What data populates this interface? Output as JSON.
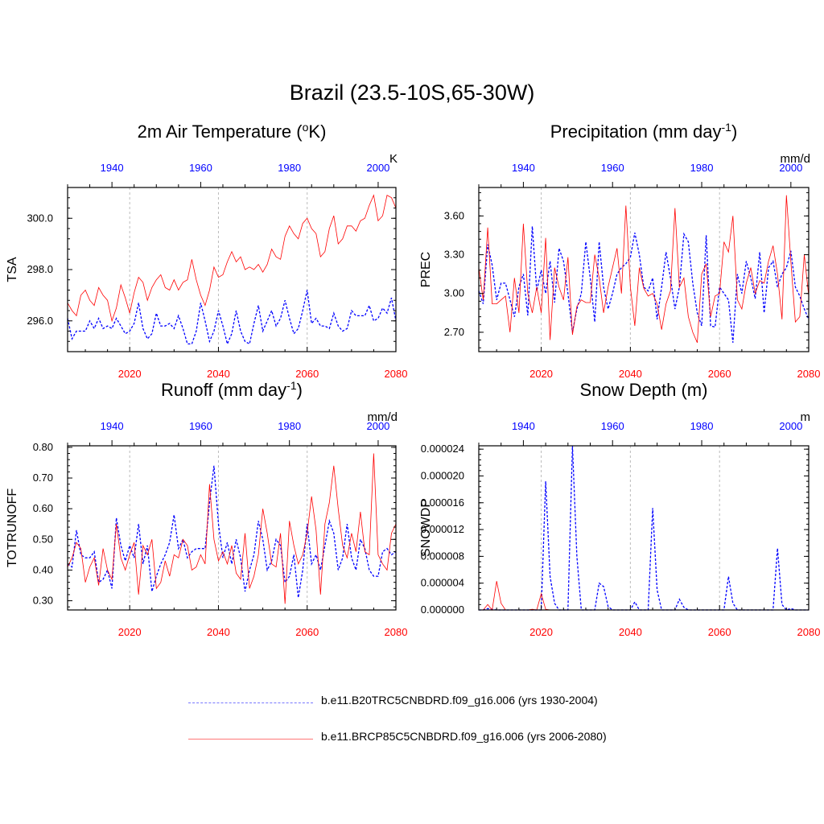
{
  "title": "Brazil (23.5-10S,65-30W)",
  "colors": {
    "historical": "#0000ff",
    "future": "#ff0000",
    "grid": "#bbbbbb",
    "frame": "#000000"
  },
  "legend": [
    {
      "label": "b.e11.B20TRC5CNBDRD.f09_g16.006 (yrs 1930-2004)",
      "style": "dashed",
      "color": "#0000ff"
    },
    {
      "label": "b.e11.BRCP85C5CNBDRD.f09_g16.006 (yrs 2006-2080)",
      "style": "solid",
      "color": "#ff0000"
    }
  ],
  "chart_data": [
    {
      "type": "line",
      "title": "2m Air Temperature (°K)",
      "title_parts": [
        "2m Air Temperature (",
        "o",
        "K)"
      ],
      "ylabel": "TSA",
      "units": "K",
      "ylim": [
        294.8,
        301.2
      ],
      "yticks": [
        296.0,
        298.0,
        300.0
      ],
      "ytick_labels": [
        "296.0",
        "298.0",
        "300.0"
      ],
      "ydecimals": 1,
      "bottom_axis": {
        "range": [
          2006,
          2080
        ],
        "ticks": [
          2020,
          2040,
          2060,
          2080
        ]
      },
      "top_axis": {
        "range": [
          1930,
          2004
        ],
        "ticks": [
          1940,
          1960,
          1980,
          2000
        ]
      },
      "series": [
        {
          "name": "b.e11.B20TRC5CNBDRD.f09_g16.006 (yrs 1930-2004)",
          "axis": "top",
          "style": "dashed",
          "x_start": 1930,
          "values": [
            296.1,
            295.3,
            295.6,
            295.6,
            295.6,
            296.0,
            295.7,
            296.1,
            295.7,
            295.8,
            295.7,
            296.1,
            295.8,
            295.5,
            295.6,
            295.9,
            296.7,
            295.7,
            295.3,
            295.5,
            296.3,
            295.8,
            295.8,
            295.9,
            295.7,
            296.2,
            295.7,
            295.1,
            295.1,
            295.6,
            296.7,
            296.0,
            295.2,
            295.6,
            296.4,
            295.8,
            295.1,
            295.5,
            296.4,
            295.6,
            295.2,
            295.1,
            295.9,
            296.6,
            295.6,
            296.0,
            296.4,
            295.8,
            296.1,
            296.8,
            296.1,
            295.5,
            295.7,
            296.4,
            297.2,
            295.9,
            296.1,
            295.8,
            295.8,
            295.7,
            296.3,
            295.8,
            295.6,
            295.7,
            296.4,
            296.2,
            296.2,
            296.2,
            296.6,
            296.0,
            296.1,
            296.5,
            296.3,
            296.9,
            296.0
          ]
        },
        {
          "name": "b.e11.BRCP85C5CNBDRD.f09_g16.006 (yrs 2006-2080)",
          "axis": "bottom",
          "style": "solid",
          "x_start": 2006,
          "values": [
            296.7,
            296.4,
            296.2,
            297.0,
            297.2,
            296.8,
            296.6,
            297.3,
            297.0,
            296.8,
            296.0,
            296.5,
            297.4,
            296.9,
            296.3,
            297.1,
            297.7,
            297.5,
            296.8,
            297.3,
            297.6,
            297.8,
            297.3,
            297.2,
            297.6,
            297.2,
            297.5,
            297.6,
            298.4,
            297.6,
            297.0,
            296.6,
            297.2,
            298.1,
            297.7,
            297.8,
            298.3,
            298.7,
            298.3,
            298.5,
            298.0,
            298.1,
            298.0,
            298.2,
            297.9,
            298.2,
            298.8,
            298.5,
            298.4,
            299.3,
            299.7,
            299.4,
            299.2,
            299.8,
            300.0,
            299.6,
            299.4,
            298.5,
            298.7,
            299.6,
            300.1,
            299.0,
            299.2,
            299.7,
            299.7,
            299.5,
            299.9,
            300.0,
            300.5,
            300.9,
            299.9,
            300.1,
            300.9,
            300.8,
            300.4
          ]
        }
      ]
    },
    {
      "type": "line",
      "title": "Precipitation (mm day-1)",
      "title_parts": [
        "Precipitation (mm day",
        "-1",
        ")"
      ],
      "ylabel": "PREC",
      "units": "mm/d",
      "ylim": [
        2.55,
        3.82
      ],
      "yticks": [
        2.7,
        3.0,
        3.3,
        3.6
      ],
      "ytick_labels": [
        "2.70",
        "3.00",
        "3.30",
        "3.60"
      ],
      "ydecimals": 2,
      "bottom_axis": {
        "range": [
          2006,
          2080
        ],
        "ticks": [
          2020,
          2040,
          2060,
          2080
        ]
      },
      "top_axis": {
        "range": [
          1930,
          2004
        ],
        "ticks": [
          1940,
          1960,
          1980,
          2000
        ]
      },
      "series": [
        {
          "name": "b.e11.B20TRC5CNBDRD.f09_g16.006 (yrs 1930-2004)",
          "axis": "top",
          "style": "dashed",
          "x_start": 1930,
          "values": [
            3.02,
            2.92,
            3.38,
            3.22,
            2.95,
            3.08,
            3.08,
            2.95,
            2.82,
            3.05,
            3.15,
            2.83,
            3.52,
            3.02,
            3.18,
            3.0,
            3.25,
            2.93,
            3.35,
            3.25,
            3.0,
            2.7,
            2.88,
            3.0,
            3.4,
            3.12,
            2.78,
            3.4,
            3.05,
            2.88,
            3.0,
            3.15,
            3.2,
            3.23,
            3.28,
            3.47,
            3.3,
            3.05,
            3.02,
            3.12,
            2.8,
            3.05,
            3.32,
            3.12,
            2.88,
            3.05,
            3.46,
            3.4,
            3.08,
            2.85,
            2.75,
            3.45,
            2.75,
            2.74,
            3.05,
            3.0,
            2.95,
            2.62,
            3.15,
            3.0,
            3.25,
            3.12,
            2.96,
            3.32,
            2.85,
            3.2,
            3.25,
            3.05,
            3.15,
            3.2,
            3.33,
            3.05,
            2.98,
            2.88,
            2.8
          ]
        },
        {
          "name": "b.e11.BRCP85C5CNBDRD.f09_g16.006 (yrs 2006-2080)",
          "axis": "bottom",
          "style": "solid",
          "x_start": 2006,
          "values": [
            3.2,
            2.95,
            3.51,
            2.92,
            2.92,
            2.95,
            2.98,
            2.7,
            3.12,
            2.85,
            3.54,
            3.0,
            2.85,
            3.05,
            2.85,
            3.43,
            2.64,
            3.2,
            3.05,
            2.95,
            3.28,
            2.68,
            2.9,
            2.95,
            2.93,
            2.93,
            3.3,
            3.12,
            2.85,
            3.05,
            3.2,
            3.35,
            3.0,
            3.68,
            3.05,
            2.75,
            3.2,
            3.04,
            2.98,
            3.0,
            2.92,
            2.72,
            2.92,
            3.02,
            3.66,
            3.05,
            3.12,
            2.82,
            2.7,
            2.62,
            3.15,
            3.23,
            2.82,
            2.98,
            3.0,
            3.4,
            3.32,
            3.6,
            2.95,
            2.88,
            3.08,
            3.2,
            3.0,
            3.1,
            3.08,
            3.25,
            3.37,
            3.15,
            2.8,
            3.76,
            3.25,
            2.78,
            2.82,
            3.3,
            2.98
          ]
        }
      ]
    },
    {
      "type": "line",
      "title": "Runoff (mm day-1)",
      "title_parts": [
        "Runoff (mm day",
        "-1",
        ")"
      ],
      "ylabel": "TOTRUNOFF",
      "units": "mm/d",
      "ylim": [
        0.27,
        0.805
      ],
      "yticks": [
        0.3,
        0.4,
        0.5,
        0.6,
        0.7,
        0.8
      ],
      "ytick_labels": [
        "0.30",
        "0.40",
        "0.50",
        "0.60",
        "0.70",
        "0.80"
      ],
      "ydecimals": 2,
      "bottom_axis": {
        "range": [
          2006,
          2080
        ],
        "ticks": [
          2020,
          2040,
          2060,
          2080
        ]
      },
      "top_axis": {
        "range": [
          1930,
          2004
        ],
        "ticks": [
          1940,
          1960,
          1980,
          2000
        ]
      },
      "series": [
        {
          "name": "b.e11.B20TRC5CNBDRD.f09_g16.006 (yrs 1930-2004)",
          "axis": "top",
          "style": "dashed",
          "x_start": 1930,
          "values": [
            0.42,
            0.41,
            0.53,
            0.45,
            0.44,
            0.44,
            0.46,
            0.36,
            0.37,
            0.4,
            0.34,
            0.57,
            0.48,
            0.43,
            0.48,
            0.44,
            0.55,
            0.42,
            0.48,
            0.33,
            0.38,
            0.42,
            0.45,
            0.49,
            0.58,
            0.47,
            0.5,
            0.44,
            0.46,
            0.47,
            0.47,
            0.47,
            0.62,
            0.74,
            0.55,
            0.44,
            0.49,
            0.42,
            0.5,
            0.44,
            0.33,
            0.4,
            0.45,
            0.56,
            0.5,
            0.4,
            0.43,
            0.5,
            0.48,
            0.36,
            0.38,
            0.45,
            0.31,
            0.4,
            0.55,
            0.42,
            0.45,
            0.4,
            0.48,
            0.56,
            0.52,
            0.4,
            0.44,
            0.55,
            0.44,
            0.4,
            0.5,
            0.47,
            0.4,
            0.38,
            0.38,
            0.46,
            0.47,
            0.45,
            0.46
          ]
        },
        {
          "name": "b.e11.BRCP85C5CNBDRD.f09_g16.006 (yrs 2006-2080)",
          "axis": "bottom",
          "style": "solid",
          "x_start": 2006,
          "values": [
            0.41,
            0.44,
            0.49,
            0.47,
            0.36,
            0.41,
            0.44,
            0.35,
            0.47,
            0.4,
            0.37,
            0.55,
            0.44,
            0.4,
            0.45,
            0.49,
            0.32,
            0.48,
            0.45,
            0.5,
            0.34,
            0.36,
            0.43,
            0.38,
            0.45,
            0.44,
            0.5,
            0.48,
            0.4,
            0.41,
            0.45,
            0.42,
            0.68,
            0.5,
            0.43,
            0.46,
            0.42,
            0.48,
            0.39,
            0.37,
            0.52,
            0.34,
            0.38,
            0.45,
            0.6,
            0.52,
            0.42,
            0.41,
            0.52,
            0.29,
            0.56,
            0.48,
            0.42,
            0.45,
            0.52,
            0.64,
            0.53,
            0.32,
            0.55,
            0.62,
            0.74,
            0.6,
            0.48,
            0.44,
            0.52,
            0.46,
            0.59,
            0.46,
            0.45,
            0.78,
            0.45,
            0.42,
            0.4,
            0.52,
            0.55
          ]
        }
      ]
    },
    {
      "type": "line",
      "title": "Snow Depth (m)",
      "title_parts": [
        "Snow Depth (m)",
        "",
        ""
      ],
      "ylabel": "SNOWDP",
      "units": "m",
      "ylim": [
        0,
        2.45e-05
      ],
      "yticks": [
        0,
        4e-06,
        8e-06,
        1.2e-05,
        1.6e-05,
        2e-05,
        2.4e-05
      ],
      "ytick_labels": [
        "0.000000",
        "0.000004",
        "0.000008",
        "0.000012",
        "0.000016",
        "0.000020",
        "0.000024"
      ],
      "ydecimals": 6,
      "bottom_axis": {
        "range": [
          2006,
          2080
        ],
        "ticks": [
          2020,
          2040,
          2060,
          2080
        ]
      },
      "top_axis": {
        "range": [
          1930,
          2004
        ],
        "ticks": [
          1940,
          1960,
          1980,
          2000
        ]
      },
      "series": [
        {
          "name": "b.e11.B20TRC5CNBDRD.f09_g16.006 (yrs 1930-2004)",
          "axis": "top",
          "style": "dashed",
          "x_start": 1930,
          "values": [
            0,
            0,
            2e-07,
            1e-07,
            0,
            0,
            0,
            0,
            0,
            0,
            0,
            0,
            0,
            0,
            0,
            1.92e-05,
            5e-06,
            1e-06,
            0,
            0,
            0,
            2.45e-05,
            8e-06,
            0,
            0,
            0,
            0,
            4e-06,
            3.5e-06,
            5e-07,
            0,
            0,
            0,
            0,
            0,
            1.2e-06,
            0,
            0,
            0,
            1.52e-05,
            3e-06,
            0,
            0,
            0,
            0,
            1.6e-06,
            4e-07,
            0,
            0,
            0,
            0,
            0,
            0,
            0,
            0,
            0,
            5e-06,
            1e-06,
            0,
            0,
            0,
            0,
            0,
            0,
            0,
            0,
            0,
            9.2e-06,
            8e-07,
            0,
            2e-07,
            0,
            0,
            0,
            0
          ]
        },
        {
          "name": "b.e11.BRCP85C5CNBDRD.f09_g16.006 (yrs 2006-2080)",
          "axis": "bottom",
          "style": "solid",
          "x_start": 2006,
          "values": [
            0,
            0,
            8e-07,
            0,
            4.3e-06,
            1e-06,
            0,
            0,
            0,
            0,
            0,
            0,
            1e-07,
            0,
            2.4e-06,
            1e-07,
            0,
            0,
            0,
            0,
            0,
            0,
            0,
            0,
            0,
            0,
            0,
            0,
            0,
            0,
            0,
            0,
            0,
            0,
            0,
            0,
            0,
            0,
            0,
            0,
            0,
            0,
            0,
            0,
            0,
            0,
            0,
            0,
            0,
            0,
            0,
            0,
            0,
            0,
            0,
            0,
            0,
            0,
            0,
            0,
            0,
            0,
            0,
            0,
            0,
            0,
            0,
            0,
            0,
            0,
            0,
            0,
            0,
            0,
            0
          ]
        }
      ]
    }
  ]
}
